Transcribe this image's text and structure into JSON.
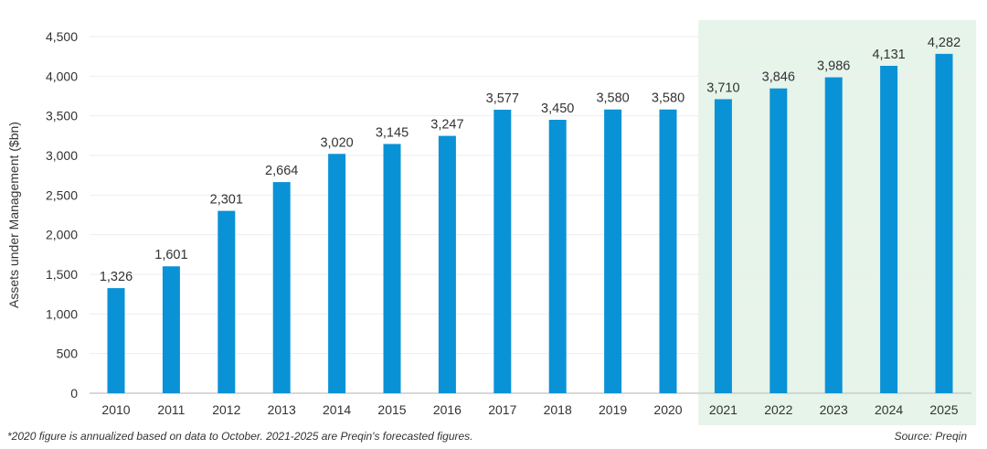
{
  "chart_data": {
    "type": "bar",
    "ylabel": "Assets under Management ($bn)",
    "xlabel": "",
    "categories": [
      "2010",
      "2011",
      "2012",
      "2013",
      "2014",
      "2015",
      "2016",
      "2017",
      "2018",
      "2019",
      "2020",
      "2021",
      "2022",
      "2023",
      "2024",
      "2025"
    ],
    "values": [
      1326,
      1601,
      2301,
      2664,
      3020,
      3145,
      3247,
      3577,
      3450,
      3580,
      3580,
      3710,
      3846,
      3986,
      4131,
      4282
    ],
    "data_labels": [
      "1,326",
      "1,601",
      "2,301",
      "2,664",
      "3,020",
      "3,145",
      "3,247",
      "3,577",
      "3,450",
      "3,580",
      "3,580",
      "3,710",
      "3,846",
      "3,986",
      "4,131",
      "4,282"
    ],
    "ylim": [
      0,
      4500
    ],
    "yticks": [
      0,
      500,
      1000,
      1500,
      2000,
      2500,
      3000,
      3500,
      4000,
      4500
    ],
    "ytick_labels": [
      "0",
      "500",
      "1,000",
      "1,500",
      "2,000",
      "2,500",
      "3,000",
      "3,500",
      "4,000",
      "4,500"
    ],
    "grid": true,
    "highlighted_range": [
      "2021",
      "2025"
    ],
    "colors": {
      "bar": "#0a92d6",
      "highlight": "#e6f4ea",
      "grid": "#eeeeee",
      "axis": "#cccccc"
    }
  },
  "footnote": "*2020 figure is annualized based on data to October. 2021-2025 are Preqin's forecasted figures.",
  "source": "Source: Preqin"
}
